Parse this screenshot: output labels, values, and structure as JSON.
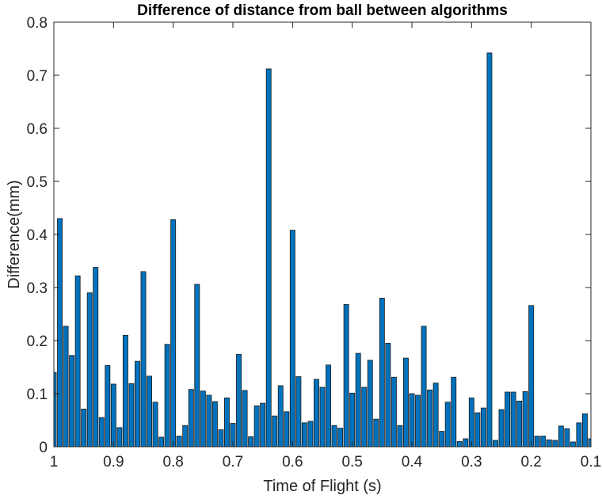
{
  "chart_data": {
    "type": "bar",
    "title": "Difference of distance from ball between algorithms",
    "xlabel": "Time of Flight (s)",
    "ylabel": "Difference(mm)",
    "xlim": [
      0.1,
      1.0
    ],
    "x_reversed": true,
    "ylim": [
      0,
      0.8
    ],
    "grid": false,
    "legend": "none",
    "bar_color": "#0072BD",
    "bar_edge_color": "#1a1a1a",
    "xticks": [
      1,
      0.9,
      0.8,
      0.7,
      0.6,
      0.5,
      0.4,
      0.3,
      0.2,
      0.1
    ],
    "xtick_labels": [
      "1",
      "0.9",
      "0.8",
      "0.7",
      "0.6",
      "0.5",
      "0.4",
      "0.3",
      "0.2",
      "0.1"
    ],
    "yticks": [
      0,
      0.1,
      0.2,
      0.3,
      0.4,
      0.5,
      0.6,
      0.7,
      0.8
    ],
    "ytick_labels": [
      "0",
      "0.1",
      "0.2",
      "0.3",
      "0.4",
      "0.5",
      "0.6",
      "0.7",
      "0.8"
    ],
    "series": [
      {
        "x": [
          1.0,
          0.99,
          0.98,
          0.97,
          0.96,
          0.95,
          0.94,
          0.93,
          0.92,
          0.91,
          0.9,
          0.89,
          0.88,
          0.87,
          0.86,
          0.85,
          0.84,
          0.83,
          0.82,
          0.81,
          0.8,
          0.79,
          0.78,
          0.77,
          0.76,
          0.75,
          0.74,
          0.73,
          0.72,
          0.71,
          0.7,
          0.69,
          0.68,
          0.67,
          0.66,
          0.65,
          0.64,
          0.63,
          0.62,
          0.61,
          0.6,
          0.59,
          0.58,
          0.57,
          0.56,
          0.55,
          0.54,
          0.53,
          0.52,
          0.51,
          0.5,
          0.49,
          0.48,
          0.47,
          0.46,
          0.45,
          0.44,
          0.43,
          0.42,
          0.41,
          0.4,
          0.39,
          0.38,
          0.37,
          0.36,
          0.35,
          0.34,
          0.33,
          0.32,
          0.31,
          0.3,
          0.29,
          0.28,
          0.27,
          0.26,
          0.25,
          0.24,
          0.23,
          0.22,
          0.21,
          0.2,
          0.19,
          0.18,
          0.17,
          0.16,
          0.15,
          0.14,
          0.13,
          0.12,
          0.11,
          0.1
        ],
        "values": [
          0.14,
          0.43,
          0.227,
          0.172,
          0.322,
          0.071,
          0.29,
          0.338,
          0.055,
          0.153,
          0.118,
          0.036,
          0.21,
          0.119,
          0.161,
          0.33,
          0.133,
          0.084,
          0.018,
          0.193,
          0.428,
          0.02,
          0.04,
          0.108,
          0.306,
          0.105,
          0.097,
          0.085,
          0.032,
          0.092,
          0.044,
          0.174,
          0.106,
          0.019,
          0.077,
          0.082,
          0.712,
          0.058,
          0.115,
          0.066,
          0.408,
          0.132,
          0.045,
          0.048,
          0.127,
          0.112,
          0.154,
          0.04,
          0.035,
          0.268,
          0.101,
          0.176,
          0.112,
          0.163,
          0.052,
          0.28,
          0.195,
          0.131,
          0.04,
          0.167,
          0.1,
          0.097,
          0.227,
          0.107,
          0.12,
          0.029,
          0.084,
          0.131,
          0.01,
          0.015,
          0.092,
          0.064,
          0.073,
          0.742,
          0.012,
          0.07,
          0.103,
          0.103,
          0.086,
          0.104,
          0.266,
          0.02,
          0.02,
          0.013,
          0.012,
          0.039,
          0.034,
          0.009,
          0.045,
          0.062,
          0.015
        ]
      }
    ]
  }
}
